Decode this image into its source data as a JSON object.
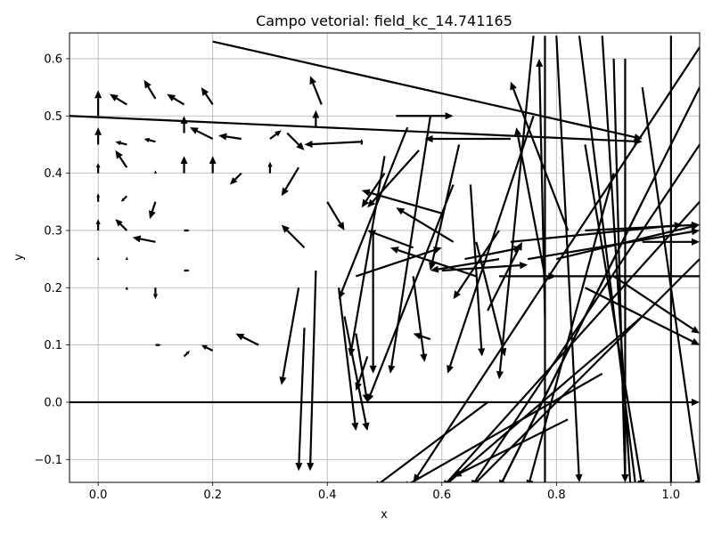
{
  "chart_data": {
    "type": "quiver",
    "title": "Campo vetorial: field_kc_14.741165",
    "xlabel": "x",
    "ylabel": "y",
    "xlim": [
      -0.05,
      1.05
    ],
    "ylim": [
      -0.14,
      0.645
    ],
    "xticks": [
      0.0,
      0.2,
      0.4,
      0.6,
      0.8,
      1.0
    ],
    "xtick_labels": [
      "0.0",
      "0.2",
      "0.4",
      "0.6",
      "0.8",
      "1.0"
    ],
    "yticks": [
      -0.1,
      0.0,
      0.1,
      0.2,
      0.3,
      0.4,
      0.5,
      0.6
    ],
    "ytick_labels": [
      "−0.1",
      "0.0",
      "0.1",
      "0.2",
      "0.3",
      "0.4",
      "0.5",
      "0.6"
    ],
    "grid": true,
    "arrow_color": "#000000",
    "arrows": [
      {
        "x": 0.0,
        "y": 0.5,
        "u": 0.0,
        "v": 0.045
      },
      {
        "x": 0.0,
        "y": 0.45,
        "u": 0.0,
        "v": 0.03
      },
      {
        "x": 0.0,
        "y": 0.4,
        "u": 0.0,
        "v": 0.018
      },
      {
        "x": 0.0,
        "y": 0.35,
        "u": 0.0,
        "v": 0.015
      },
      {
        "x": 0.0,
        "y": 0.3,
        "u": 0.0,
        "v": 0.02
      },
      {
        "x": 0.0,
        "y": 0.25,
        "u": 0.0,
        "v": 0.004
      },
      {
        "x": 0.05,
        "y": 0.52,
        "u": -0.03,
        "v": 0.018
      },
      {
        "x": 0.05,
        "y": 0.45,
        "u": -0.02,
        "v": 0.005
      },
      {
        "x": 0.05,
        "y": 0.41,
        "u": -0.02,
        "v": 0.03
      },
      {
        "x": 0.05,
        "y": 0.36,
        "u": -0.01,
        "v": -0.01
      },
      {
        "x": 0.05,
        "y": 0.3,
        "u": -0.02,
        "v": 0.02
      },
      {
        "x": 0.05,
        "y": 0.25,
        "u": 0.0,
        "v": 0.004
      },
      {
        "x": 0.05,
        "y": 0.2,
        "u": 0.0,
        "v": 0.002
      },
      {
        "x": 0.1,
        "y": 0.53,
        "u": -0.02,
        "v": 0.033
      },
      {
        "x": 0.1,
        "y": 0.455,
        "u": -0.02,
        "v": 0.005
      },
      {
        "x": 0.1,
        "y": 0.4,
        "u": 0.0,
        "v": 0.005
      },
      {
        "x": 0.1,
        "y": 0.35,
        "u": -0.01,
        "v": -0.03
      },
      {
        "x": 0.1,
        "y": 0.28,
        "u": -0.04,
        "v": 0.008
      },
      {
        "x": 0.1,
        "y": 0.2,
        "u": 0.0,
        "v": -0.02
      },
      {
        "x": 0.1,
        "y": 0.1,
        "u": 0.01,
        "v": 0.0
      },
      {
        "x": 0.15,
        "y": 0.52,
        "u": -0.03,
        "v": 0.018
      },
      {
        "x": 0.15,
        "y": 0.47,
        "u": 0.0,
        "v": 0.03
      },
      {
        "x": 0.15,
        "y": 0.4,
        "u": 0.0,
        "v": 0.03
      },
      {
        "x": 0.15,
        "y": 0.3,
        "u": 0.01,
        "v": 0.0
      },
      {
        "x": 0.15,
        "y": 0.23,
        "u": 0.01,
        "v": 0.0
      },
      {
        "x": 0.15,
        "y": 0.08,
        "u": 0.01,
        "v": 0.01
      },
      {
        "x": 0.2,
        "y": 0.52,
        "u": -0.02,
        "v": 0.03
      },
      {
        "x": 0.2,
        "y": 0.46,
        "u": -0.04,
        "v": 0.02
      },
      {
        "x": 0.2,
        "y": 0.4,
        "u": 0.0,
        "v": 0.03
      },
      {
        "x": 0.2,
        "y": 0.09,
        "u": -0.02,
        "v": 0.01
      },
      {
        "x": 0.25,
        "y": 0.46,
        "u": -0.04,
        "v": 0.006
      },
      {
        "x": 0.25,
        "y": 0.4,
        "u": -0.02,
        "v": -0.02
      },
      {
        "x": 0.3,
        "y": 0.46,
        "u": 0.02,
        "v": 0.015
      },
      {
        "x": 0.3,
        "y": 0.4,
        "u": 0.0,
        "v": 0.02
      },
      {
        "x": 0.28,
        "y": 0.1,
        "u": -0.04,
        "v": 0.02
      },
      {
        "x": 0.33,
        "y": 0.47,
        "u": 0.03,
        "v": -0.03
      },
      {
        "x": 0.35,
        "y": 0.41,
        "u": -0.03,
        "v": -0.05
      },
      {
        "x": 0.36,
        "y": 0.27,
        "u": -0.04,
        "v": 0.04
      },
      {
        "x": 0.35,
        "y": 0.2,
        "u": -0.03,
        "v": -0.17
      },
      {
        "x": 0.36,
        "y": 0.13,
        "u": -0.01,
        "v": -0.25
      },
      {
        "x": 0.38,
        "y": 0.23,
        "u": -0.01,
        "v": -0.35
      },
      {
        "x": 0.39,
        "y": 0.52,
        "u": -0.02,
        "v": 0.05
      },
      {
        "x": 0.38,
        "y": 0.48,
        "u": 0.0,
        "v": 0.03
      },
      {
        "x": 0.46,
        "y": 0.455,
        "u": -0.1,
        "v": -0.005
      },
      {
        "x": 0.43,
        "y": 0.14,
        "u": 0.0,
        "v": 0.0
      },
      {
        "x": 0.43,
        "y": 0.15,
        "u": 0.04,
        "v": -0.2
      },
      {
        "x": 0.46,
        "y": 0.45,
        "u": 0.0,
        "v": 0.01
      },
      {
        "x": 0.5,
        "y": 0.4,
        "u": -0.04,
        "v": -0.06
      },
      {
        "x": 0.42,
        "y": 0.2,
        "u": 0.03,
        "v": -0.25
      },
      {
        "x": 0.47,
        "y": 0.08,
        "u": -0.02,
        "v": -0.06
      },
      {
        "x": 0.52,
        "y": 0.5,
        "u": 0.1,
        "v": 0.0
      },
      {
        "x": 0.55,
        "y": 0.27,
        "u": -0.08,
        "v": 0.03
      },
      {
        "x": 0.6,
        "y": 0.33,
        "u": -0.14,
        "v": 0.04
      },
      {
        "x": 0.62,
        "y": 0.28,
        "u": -0.1,
        "v": 0.06
      },
      {
        "x": 0.66,
        "y": 0.22,
        "u": -0.15,
        "v": 0.05
      },
      {
        "x": 0.7,
        "y": 0.25,
        "u": -0.12,
        "v": -0.02
      },
      {
        "x": 0.72,
        "y": 0.46,
        "u": -0.15,
        "v": 0.0
      },
      {
        "x": 0.56,
        "y": 0.44,
        "u": -0.09,
        "v": -0.1
      },
      {
        "x": 0.58,
        "y": 0.11,
        "u": -0.03,
        "v": 0.01
      },
      {
        "x": 0.55,
        "y": 0.22,
        "u": 0.02,
        "v": -0.15
      },
      {
        "x": 0.63,
        "y": 0.45,
        "u": -0.05,
        "v": -0.22
      },
      {
        "x": 0.65,
        "y": 0.38,
        "u": 0.02,
        "v": -0.3
      },
      {
        "x": 0.66,
        "y": 0.28,
        "u": 0.05,
        "v": -0.2
      },
      {
        "x": 0.68,
        "y": 0.16,
        "u": 0.06,
        "v": 0.12
      },
      {
        "x": 0.7,
        "y": 0.3,
        "u": -0.08,
        "v": -0.12
      },
      {
        "x": 0.58,
        "y": 0.5,
        "u": -0.07,
        "v": -0.45
      },
      {
        "x": 0.62,
        "y": 0.38,
        "u": -0.15,
        "v": -0.38
      },
      {
        "x": 0.54,
        "y": 0.48,
        "u": -0.12,
        "v": -0.3
      },
      {
        "x": 0.5,
        "y": 0.43,
        "u": -0.06,
        "v": -0.35
      },
      {
        "x": 0.48,
        "y": 0.3,
        "u": 0.0,
        "v": -0.25
      },
      {
        "x": 0.45,
        "y": 0.12,
        "u": 0.02,
        "v": -0.12
      },
      {
        "x": 0.4,
        "y": 0.35,
        "u": 0.03,
        "v": -0.05
      },
      {
        "x": 0.45,
        "y": 0.22,
        "u": 0.15,
        "v": 0.05
      },
      {
        "x": 0.6,
        "y": 0.23,
        "u": 0.15,
        "v": 0.01
      },
      {
        "x": 0.7,
        "y": 0.22,
        "u": 0.1,
        "v": 0.0
      },
      {
        "x": 0.64,
        "y": 0.25,
        "u": 0.1,
        "v": 0.02
      },
      {
        "x": 0.78,
        "y": 0.22,
        "u": -0.05,
        "v": 0.26
      },
      {
        "x": 0.78,
        "y": 0.15,
        "u": -0.01,
        "v": 0.45
      },
      {
        "x": 0.82,
        "y": 0.3,
        "u": -0.1,
        "v": 0.26
      },
      {
        "x": 0.76,
        "y": 0.5,
        "u": -0.15,
        "v": -0.45
      },
      {
        "x": 0.76,
        "y": 0.64,
        "u": -0.06,
        "v": -0.6
      },
      {
        "x": 0.78,
        "y": 0.64,
        "u": 0.0,
        "v": -0.8
      },
      {
        "x": 0.8,
        "y": 0.64,
        "u": 0.04,
        "v": -0.78
      },
      {
        "x": 0.84,
        "y": 0.64,
        "u": 0.1,
        "v": -0.8
      },
      {
        "x": 0.88,
        "y": 0.64,
        "u": 0.05,
        "v": -0.8
      },
      {
        "x": 0.9,
        "y": 0.6,
        "u": 0.02,
        "v": -0.74
      },
      {
        "x": 0.92,
        "y": 0.6,
        "u": 0.0,
        "v": -0.74
      },
      {
        "x": 0.95,
        "y": 0.55,
        "u": 0.1,
        "v": -0.7
      },
      {
        "x": 0.85,
        "y": 0.45,
        "u": 0.1,
        "v": -0.6
      },
      {
        "x": 0.9,
        "y": 0.4,
        "u": -0.15,
        "v": -0.55
      },
      {
        "x": 0.95,
        "y": 0.35,
        "u": -0.25,
        "v": -0.5
      },
      {
        "x": 1.0,
        "y": 0.64,
        "u": 0.0,
        "v": -0.8
      },
      {
        "x": 1.05,
        "y": 0.25,
        "u": -0.4,
        "v": -0.4
      },
      {
        "x": 1.05,
        "y": 0.35,
        "u": -0.45,
        "v": -0.5
      },
      {
        "x": 1.05,
        "y": 0.45,
        "u": -0.4,
        "v": -0.6
      },
      {
        "x": 1.05,
        "y": 0.55,
        "u": -0.35,
        "v": -0.7
      },
      {
        "x": 1.05,
        "y": 0.62,
        "u": -0.5,
        "v": -0.76
      },
      {
        "x": 0.95,
        "y": 0.15,
        "u": -0.35,
        "v": -0.3
      },
      {
        "x": 0.88,
        "y": 0.05,
        "u": -0.35,
        "v": -0.2
      },
      {
        "x": 0.68,
        "y": 0.0,
        "u": -0.2,
        "v": -0.15
      },
      {
        "x": 0.82,
        "y": -0.03,
        "u": -0.2,
        "v": -0.1
      },
      {
        "x": 0.72,
        "y": 0.28,
        "u": 0.3,
        "v": 0.03
      },
      {
        "x": 0.75,
        "y": 0.25,
        "u": 0.3,
        "v": 0.05
      },
      {
        "x": 0.8,
        "y": 0.25,
        "u": 0.25,
        "v": 0.06
      },
      {
        "x": 0.78,
        "y": 0.22,
        "u": 0.3,
        "v": 0.0
      },
      {
        "x": 0.85,
        "y": 0.2,
        "u": 0.2,
        "v": -0.1
      },
      {
        "x": 0.9,
        "y": 0.22,
        "u": 0.15,
        "v": -0.1
      },
      {
        "x": 0.2,
        "y": 0.63,
        "u": 0.75,
        "v": -0.17
      },
      {
        "x": -0.05,
        "y": 0.5,
        "u": 1.0,
        "v": -0.045
      },
      {
        "x": -0.05,
        "y": 0.0,
        "u": 1.1,
        "v": 0.0
      },
      {
        "x": 0.85,
        "y": 0.3,
        "u": 0.2,
        "v": 0.01
      },
      {
        "x": 0.95,
        "y": 0.28,
        "u": 0.1,
        "v": 0.0
      }
    ]
  }
}
